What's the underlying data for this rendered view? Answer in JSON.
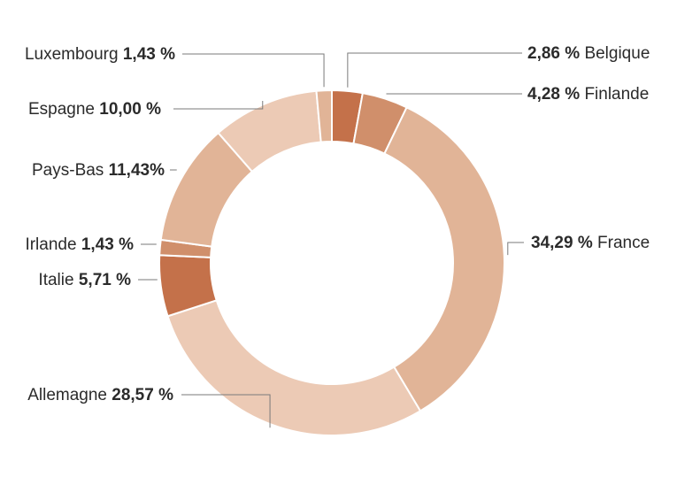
{
  "chart_data": {
    "type": "pie",
    "donut": true,
    "title": "",
    "slices": [
      {
        "label": "Belgique",
        "value": 2.86,
        "display": "2,86 %",
        "color": "#c4714a"
      },
      {
        "label": "Finlande",
        "value": 4.28,
        "display": "4,28 %",
        "color": "#d08f6b"
      },
      {
        "label": "France",
        "value": 34.29,
        "display": "34,29 %",
        "color": "#e1b497"
      },
      {
        "label": "Allemagne",
        "value": 28.57,
        "display": "28,57 %",
        "color": "#eccab5"
      },
      {
        "label": "Italie",
        "value": 5.71,
        "display": "5,71 %",
        "color": "#c4714a"
      },
      {
        "label": "Irlande",
        "value": 1.43,
        "display": "1,43 %",
        "color": "#d08f6b"
      },
      {
        "label": "Pays-Bas",
        "value": 11.43,
        "display": "11,43%",
        "color": "#e1b497"
      },
      {
        "label": "Espagne",
        "value": 10.0,
        "display": "10,00 %",
        "color": "#eccab5"
      },
      {
        "label": "Luxembourg",
        "value": 1.43,
        "display": "1,43 %",
        "color": "#e1b497"
      }
    ]
  }
}
